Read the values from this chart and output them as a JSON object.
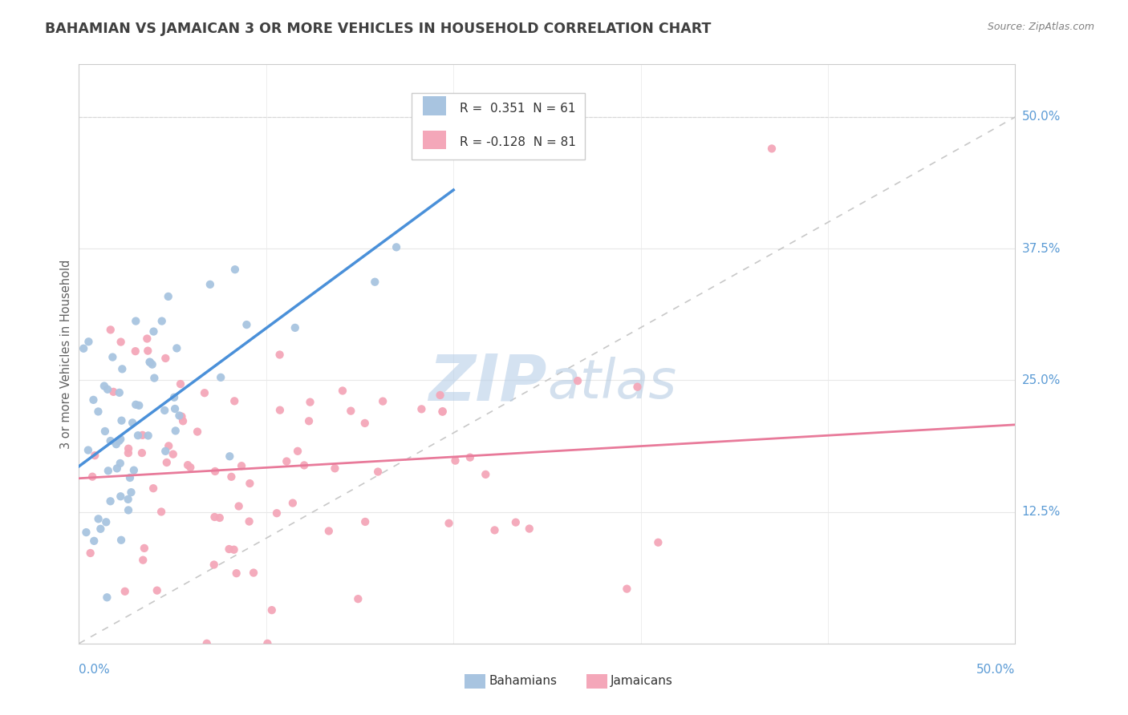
{
  "title": "BAHAMIAN VS JAMAICAN 3 OR MORE VEHICLES IN HOUSEHOLD CORRELATION CHART",
  "source": "Source: ZipAtlas.com",
  "ylabel": "3 or more Vehicles in Household",
  "y_tick_labels": [
    "12.5%",
    "25.0%",
    "37.5%",
    "50.0%"
  ],
  "y_tick_values": [
    0.125,
    0.25,
    0.375,
    0.5
  ],
  "x_range": [
    0.0,
    0.5
  ],
  "y_range": [
    0.0,
    0.55
  ],
  "legend_bah_R": "R =  0.351",
  "legend_bah_N": "N = 61",
  "legend_jam_R": "R = -0.128",
  "legend_jam_N": "N = 81",
  "bahamian_color": "#a8c4e0",
  "jamaican_color": "#f4a7b9",
  "bahamian_line_color": "#4a90d9",
  "jamaican_line_color": "#e87a9a",
  "tick_color": "#5b9bd5",
  "title_color": "#404040",
  "source_color": "#808080",
  "ylabel_color": "#606060",
  "watermark_zip_color": "#b8cfe8",
  "watermark_atlas_color": "#b0c8e0",
  "grid_color": "#e8e8e8",
  "spine_color": "#cccccc",
  "legend_edge_color": "#cccccc"
}
